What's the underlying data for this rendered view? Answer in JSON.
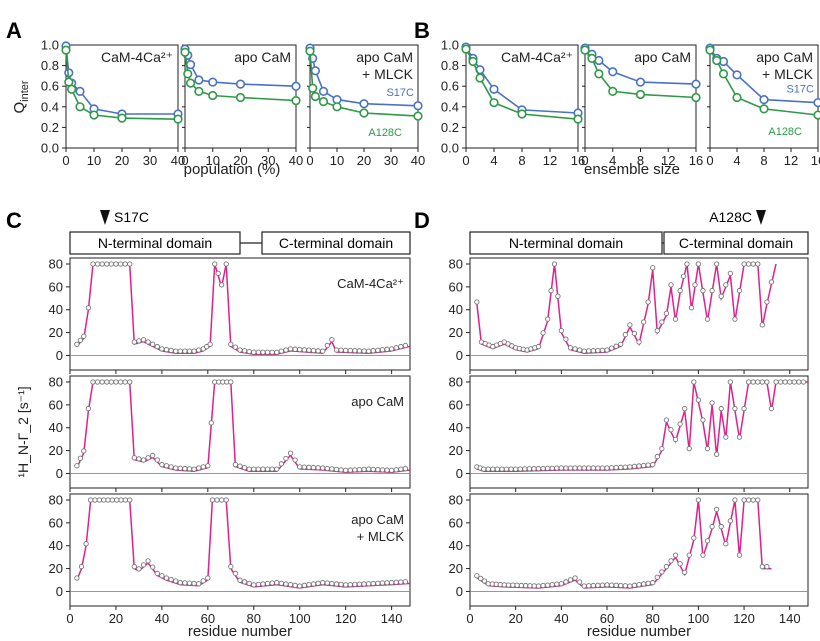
{
  "panel_letters": [
    "A",
    "B",
    "C",
    "D"
  ],
  "colors": {
    "blue": "#4a72c4",
    "green": "#2e9a48",
    "magenta": "#e0208c",
    "gray": "#777777",
    "fill": "#ffffff"
  },
  "series_labels": {
    "s17c": "S17C",
    "a128c": "A128C"
  },
  "domains": {
    "n": "N-terminal domain",
    "c": "C-terminal domain"
  },
  "markers": {
    "c": "S17C",
    "d": "A128C"
  },
  "chart_data": [
    {
      "type": "line",
      "panel": "A",
      "title": "CaM-4Ca²⁺",
      "ylabel": "Q",
      "ylabel_sub": "inter",
      "xlabel": "population (%)",
      "xlim": [
        0,
        40
      ],
      "ylim": [
        0,
        1.0
      ],
      "xticks": [
        "0",
        "10",
        "20",
        "30",
        "40"
      ],
      "yticks": [
        "0.0",
        "0.2",
        "0.4",
        "0.6",
        "0.8",
        "1.0"
      ],
      "x": [
        0,
        1,
        2,
        5,
        10,
        20,
        40
      ],
      "series": [
        {
          "name": "S17C",
          "values": [
            0.99,
            0.73,
            0.63,
            0.55,
            0.38,
            0.33,
            0.33
          ]
        },
        {
          "name": "A128C",
          "values": [
            0.95,
            0.64,
            0.57,
            0.4,
            0.32,
            0.29,
            0.28
          ]
        }
      ]
    },
    {
      "type": "line",
      "panel": "A",
      "title": "apo CaM",
      "xlim": [
        0,
        40
      ],
      "ylim": [
        0,
        1.0
      ],
      "xticks": [
        "0",
        "10",
        "20",
        "30",
        "40"
      ],
      "x": [
        0,
        1,
        2,
        5,
        10,
        20,
        40
      ],
      "series": [
        {
          "name": "S17C",
          "values": [
            0.96,
            0.9,
            0.81,
            0.66,
            0.64,
            0.62,
            0.6
          ]
        },
        {
          "name": "A128C",
          "values": [
            0.93,
            0.72,
            0.63,
            0.55,
            0.51,
            0.49,
            0.46
          ]
        }
      ]
    },
    {
      "type": "line",
      "panel": "A",
      "title": "apo CaM\n+ MLCK",
      "xlim": [
        0,
        40
      ],
      "ylim": [
        0,
        1.0
      ],
      "xticks": [
        "0",
        "10",
        "20",
        "30",
        "40"
      ],
      "x": [
        0,
        1,
        2,
        5,
        10,
        20,
        40
      ],
      "series": [
        {
          "name": "S17C",
          "values": [
            0.97,
            0.87,
            0.75,
            0.55,
            0.47,
            0.43,
            0.41
          ]
        },
        {
          "name": "A128C",
          "values": [
            0.94,
            0.58,
            0.5,
            0.45,
            0.4,
            0.34,
            0.31
          ]
        }
      ]
    },
    {
      "type": "line",
      "panel": "B",
      "title": "CaM-4Ca²⁺",
      "xlabel": "ensemble size",
      "xlim": [
        0,
        16
      ],
      "ylim": [
        0,
        1.0
      ],
      "xticks": [
        "0",
        "4",
        "8",
        "12",
        "16"
      ],
      "yticks": [
        "0.0",
        "0.2",
        "0.4",
        "0.6",
        "0.8",
        "1.0"
      ],
      "x": [
        0,
        1,
        2,
        4,
        8,
        16
      ],
      "series": [
        {
          "name": "S17C",
          "values": [
            0.98,
            0.87,
            0.76,
            0.57,
            0.37,
            0.34
          ]
        },
        {
          "name": "A128C",
          "values": [
            0.96,
            0.84,
            0.68,
            0.44,
            0.33,
            0.28
          ]
        }
      ]
    },
    {
      "type": "line",
      "panel": "B",
      "title": "apo CaM",
      "xlim": [
        0,
        16
      ],
      "ylim": [
        0,
        1.0
      ],
      "xticks": [
        "0",
        "4",
        "8",
        "12",
        "16"
      ],
      "x": [
        0,
        1,
        2,
        4,
        8,
        16
      ],
      "series": [
        {
          "name": "S17C",
          "values": [
            0.97,
            0.91,
            0.85,
            0.74,
            0.64,
            0.62
          ]
        },
        {
          "name": "A128C",
          "values": [
            0.95,
            0.87,
            0.72,
            0.55,
            0.52,
            0.49
          ]
        }
      ]
    },
    {
      "type": "line",
      "panel": "B",
      "title": "apo CaM\n+ MLCK",
      "xlim": [
        0,
        16
      ],
      "ylim": [
        0,
        1.0
      ],
      "xticks": [
        "0",
        "4",
        "8",
        "12",
        "16"
      ],
      "x": [
        0,
        1,
        2,
        4,
        8,
        16
      ],
      "series": [
        {
          "name": "S17C",
          "values": [
            0.97,
            0.87,
            0.84,
            0.71,
            0.47,
            0.44
          ]
        },
        {
          "name": "A128C",
          "values": [
            0.95,
            0.85,
            0.72,
            0.49,
            0.38,
            0.32
          ]
        }
      ]
    },
    {
      "type": "line",
      "panel": "C",
      "title": "CaM-4Ca²⁺",
      "xlim": [
        0,
        148
      ],
      "ylim": [
        0,
        80
      ],
      "xticks": [
        "0",
        "20",
        "40",
        "60",
        "80",
        "100",
        "120",
        "140"
      ],
      "yticks": [
        "0",
        "20",
        "40",
        "60",
        "80"
      ],
      "ylabel": "¹H_N-Γ_2 [s⁻¹]",
      "profile": [
        [
          3,
          8
        ],
        [
          6,
          15
        ],
        [
          8,
          40
        ],
        [
          10,
          80
        ],
        [
          26,
          80
        ],
        [
          28,
          10
        ],
        [
          32,
          12
        ],
        [
          36,
          8
        ],
        [
          40,
          4
        ],
        [
          46,
          2
        ],
        [
          54,
          2
        ],
        [
          58,
          4
        ],
        [
          61,
          8
        ],
        [
          63,
          80
        ],
        [
          66,
          60
        ],
        [
          68,
          80
        ],
        [
          70,
          8
        ],
        [
          74,
          3
        ],
        [
          80,
          1
        ],
        [
          90,
          1
        ],
        [
          96,
          4
        ],
        [
          110,
          2
        ],
        [
          114,
          12
        ],
        [
          116,
          3
        ],
        [
          130,
          2
        ],
        [
          140,
          4
        ],
        [
          148,
          8
        ]
      ]
    },
    {
      "type": "line",
      "panel": "C",
      "title": "apo CaM",
      "xlim": [
        0,
        148
      ],
      "ylim": [
        0,
        80
      ],
      "xticks": [
        "0",
        "20",
        "40",
        "60",
        "80",
        "100",
        "120",
        "140"
      ],
      "yticks": [
        "0",
        "20",
        "40",
        "60",
        "80"
      ],
      "profile": [
        [
          3,
          5
        ],
        [
          6,
          18
        ],
        [
          8,
          55
        ],
        [
          10,
          80
        ],
        [
          26,
          80
        ],
        [
          28,
          12
        ],
        [
          32,
          10
        ],
        [
          36,
          14
        ],
        [
          40,
          6
        ],
        [
          46,
          3
        ],
        [
          54,
          2
        ],
        [
          60,
          5
        ],
        [
          63,
          80
        ],
        [
          70,
          80
        ],
        [
          72,
          6
        ],
        [
          78,
          2
        ],
        [
          90,
          2
        ],
        [
          96,
          16
        ],
        [
          100,
          4
        ],
        [
          110,
          3
        ],
        [
          120,
          1
        ],
        [
          130,
          2
        ],
        [
          140,
          1
        ],
        [
          148,
          3
        ]
      ]
    },
    {
      "type": "line",
      "panel": "C",
      "title": "apo CaM\n+ MLCK",
      "xlim": [
        0,
        148
      ],
      "ylim": [
        0,
        80
      ],
      "xticks": [
        "0",
        "20",
        "40",
        "60",
        "80",
        "100",
        "120",
        "140"
      ],
      "yticks": [
        "0",
        "20",
        "40",
        "60",
        "80"
      ],
      "xlabel": "residue number",
      "profile": [
        [
          3,
          10
        ],
        [
          5,
          20
        ],
        [
          7,
          40
        ],
        [
          9,
          80
        ],
        [
          26,
          80
        ],
        [
          28,
          20
        ],
        [
          30,
          18
        ],
        [
          34,
          25
        ],
        [
          38,
          14
        ],
        [
          42,
          10
        ],
        [
          48,
          6
        ],
        [
          56,
          5
        ],
        [
          60,
          10
        ],
        [
          62,
          80
        ],
        [
          68,
          80
        ],
        [
          70,
          20
        ],
        [
          74,
          8
        ],
        [
          80,
          4
        ],
        [
          90,
          6
        ],
        [
          100,
          3
        ],
        [
          110,
          6
        ],
        [
          120,
          4
        ],
        [
          130,
          5
        ],
        [
          140,
          6
        ],
        [
          148,
          7
        ]
      ]
    },
    {
      "type": "line",
      "panel": "D",
      "title": "",
      "xlim": [
        0,
        148
      ],
      "ylim": [
        0,
        80
      ],
      "xticks": [
        "0",
        "20",
        "40",
        "60",
        "80",
        "100",
        "120",
        "140"
      ],
      "yticks": [
        "0",
        "20",
        "40",
        "60",
        "80"
      ],
      "profile": [
        [
          3,
          45
        ],
        [
          5,
          10
        ],
        [
          10,
          6
        ],
        [
          15,
          10
        ],
        [
          20,
          5
        ],
        [
          25,
          3
        ],
        [
          30,
          6
        ],
        [
          34,
          30
        ],
        [
          37,
          80
        ],
        [
          40,
          20
        ],
        [
          44,
          5
        ],
        [
          50,
          2
        ],
        [
          60,
          3
        ],
        [
          66,
          8
        ],
        [
          70,
          25
        ],
        [
          74,
          10
        ],
        [
          78,
          45
        ],
        [
          80,
          75
        ],
        [
          82,
          20
        ],
        [
          86,
          35
        ],
        [
          88,
          60
        ],
        [
          90,
          30
        ],
        [
          92,
          55
        ],
        [
          95,
          80
        ],
        [
          97,
          40
        ],
        [
          100,
          80
        ],
        [
          104,
          30
        ],
        [
          108,
          80
        ],
        [
          110,
          50
        ],
        [
          114,
          70
        ],
        [
          116,
          30
        ],
        [
          120,
          80
        ],
        [
          126,
          80
        ],
        [
          128,
          25
        ],
        [
          130,
          45
        ],
        [
          134,
          80
        ]
      ]
    },
    {
      "type": "line",
      "panel": "D",
      "title": "",
      "xlim": [
        0,
        148
      ],
      "ylim": [
        0,
        80
      ],
      "xticks": [
        "0",
        "20",
        "40",
        "60",
        "80",
        "100",
        "120",
        "140"
      ],
      "yticks": [
        "0",
        "20",
        "40",
        "60",
        "80"
      ],
      "profile": [
        [
          3,
          4
        ],
        [
          6,
          2
        ],
        [
          20,
          2
        ],
        [
          40,
          3
        ],
        [
          60,
          3
        ],
        [
          70,
          4
        ],
        [
          80,
          6
        ],
        [
          84,
          20
        ],
        [
          86,
          45
        ],
        [
          90,
          28
        ],
        [
          94,
          55
        ],
        [
          96,
          20
        ],
        [
          98,
          80
        ],
        [
          102,
          45
        ],
        [
          104,
          20
        ],
        [
          106,
          60
        ],
        [
          108,
          15
        ],
        [
          110,
          55
        ],
        [
          112,
          30
        ],
        [
          114,
          80
        ],
        [
          118,
          30
        ],
        [
          122,
          80
        ],
        [
          130,
          80
        ],
        [
          132,
          55
        ],
        [
          134,
          80
        ],
        [
          148,
          80
        ]
      ]
    },
    {
      "type": "line",
      "panel": "D",
      "title": "",
      "xlim": [
        0,
        148
      ],
      "ylim": [
        0,
        80
      ],
      "xticks": [
        "0",
        "20",
        "40",
        "60",
        "80",
        "100",
        "120",
        "140"
      ],
      "yticks": [
        "0",
        "20",
        "40",
        "60",
        "80"
      ],
      "xlabel": "residue number",
      "profile": [
        [
          3,
          12
        ],
        [
          8,
          5
        ],
        [
          15,
          4
        ],
        [
          30,
          3
        ],
        [
          40,
          5
        ],
        [
          46,
          10
        ],
        [
          50,
          3
        ],
        [
          60,
          4
        ],
        [
          70,
          3
        ],
        [
          80,
          6
        ],
        [
          86,
          20
        ],
        [
          90,
          30
        ],
        [
          94,
          15
        ],
        [
          98,
          45
        ],
        [
          100,
          80
        ],
        [
          102,
          30
        ],
        [
          106,
          55
        ],
        [
          108,
          70
        ],
        [
          112,
          40
        ],
        [
          116,
          80
        ],
        [
          118,
          30
        ],
        [
          120,
          80
        ],
        [
          126,
          80
        ],
        [
          128,
          20
        ],
        [
          132,
          20
        ]
      ]
    }
  ]
}
